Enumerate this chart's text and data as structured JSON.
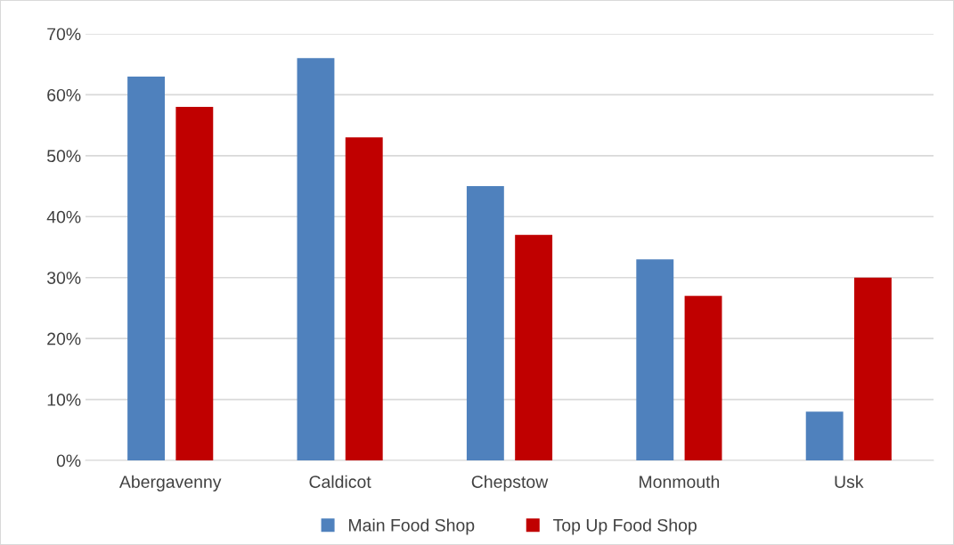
{
  "chart_data": {
    "type": "bar",
    "categories": [
      "Abergavenny",
      "Caldicot",
      "Chepstow",
      "Monmouth",
      "Usk"
    ],
    "series": [
      {
        "name": "Main Food Shop",
        "color": "#4f81bd",
        "values": [
          63,
          66,
          45,
          33,
          8
        ]
      },
      {
        "name": "Top Up Food Shop",
        "color": "#c00000",
        "values": [
          58,
          53,
          37,
          27,
          30
        ]
      }
    ],
    "ylim": [
      0,
      70
    ],
    "yticks": [
      {
        "value": 0,
        "label": "0%"
      },
      {
        "value": 10,
        "label": "10%"
      },
      {
        "value": 20,
        "label": "20%"
      },
      {
        "value": 30,
        "label": "30%"
      },
      {
        "value": 40,
        "label": "40%"
      },
      {
        "value": 50,
        "label": "50%"
      },
      {
        "value": 60,
        "label": "60%"
      },
      {
        "value": 70,
        "label": "70%"
      }
    ],
    "grid": "y",
    "legend": "bottom"
  }
}
